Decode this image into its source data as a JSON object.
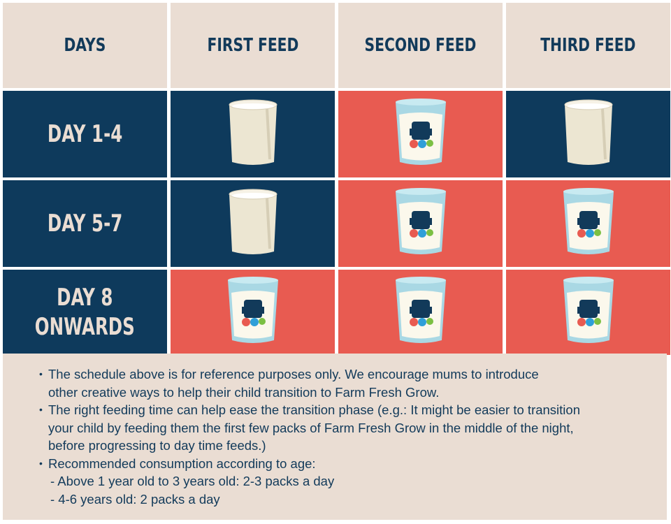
{
  "header": {
    "columns": [
      "DAYS",
      "FIRST FEED",
      "SECOND FEED",
      "THIRD FEED"
    ]
  },
  "rows": [
    {
      "day": "DAY 1-4",
      "feeds": [
        "plain-milk",
        "farm-fresh-grow",
        "plain-milk"
      ]
    },
    {
      "day": "DAY 5-7",
      "feeds": [
        "plain-milk",
        "farm-fresh-grow",
        "farm-fresh-grow"
      ]
    },
    {
      "day": "DAY 8\nONWARDS",
      "feeds": [
        "farm-fresh-grow",
        "farm-fresh-grow",
        "farm-fresh-grow"
      ]
    }
  ],
  "logo_text": "Farm Fresh Grow",
  "colors": {
    "navy": "#0e3a5c",
    "red": "#e85b51",
    "beige": "#eaddd3"
  },
  "notes": {
    "bullets": [
      {
        "lines": [
          "The schedule above is for reference purposes only. We encourage mums to introduce",
          "other creative ways to help their child transition to Farm Fresh Grow."
        ]
      },
      {
        "lines": [
          "The right feeding time can help ease the transition phase (e.g.: It might be easier to transition",
          "your child by feeding them the first few packs of Farm Fresh Grow in the middle of the night,",
          "before progressing to day time feeds.)"
        ]
      },
      {
        "lines": [
          "Recommended consumption according to age:"
        ],
        "sub": [
          "- Above 1 year old to 3 years old: 2-3 packs a day",
          "- 4-6 years old: 2 packs a day"
        ]
      }
    ]
  }
}
